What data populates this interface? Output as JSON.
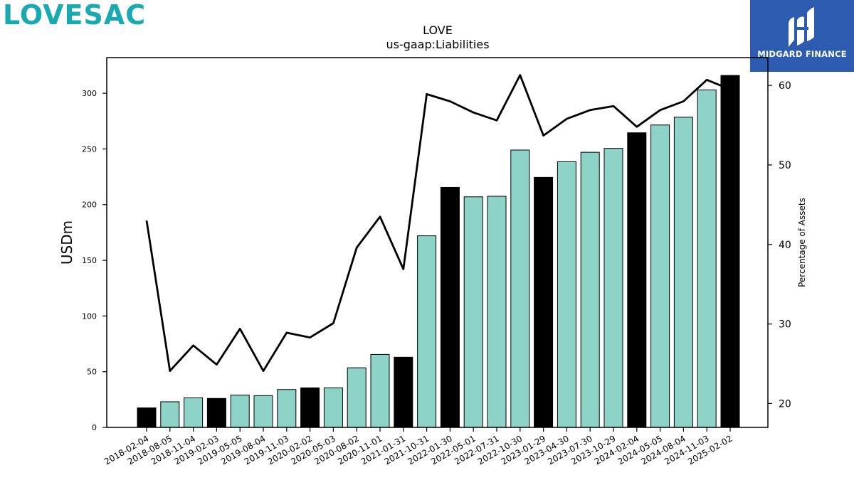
{
  "brand": {
    "logo_text": "LOVESAC",
    "logo_color": "#18aab0",
    "badge_text": "MIDGARD FINANCE",
    "badge_color": "#2c5bb0",
    "badge_icon": "midgard-logo-icon"
  },
  "chart_data": {
    "type": "bar",
    "title": "LOVE",
    "subtitle": "us-gaap:Liabilities",
    "ylabel": "USDm",
    "y2label": "Percentage of Assets",
    "ylim": [
      0,
      332
    ],
    "y2lim": [
      17,
      63.5
    ],
    "yticks": [
      0,
      50,
      100,
      150,
      200,
      250,
      300
    ],
    "y2ticks": [
      20,
      30,
      40,
      50,
      60
    ],
    "grid": false,
    "categories": [
      "2018-02-04",
      "2018-08-05",
      "2018-11-04",
      "2019-02-03",
      "2019-05-05",
      "2019-08-04",
      "2019-11-03",
      "2020-02-02",
      "2020-05-03",
      "2020-08-02",
      "2020-11-01",
      "2021-01-31",
      "2021-10-31",
      "2022-01-30",
      "2022-05-01",
      "2022-07-31",
      "2022-10-30",
      "2023-01-29",
      "2023-04-30",
      "2023-07-30",
      "2023-10-29",
      "2024-02-04",
      "2024-05-05",
      "2024-08-04",
      "2024-11-03",
      "2025-02-02"
    ],
    "series": [
      {
        "kind": "bar",
        "values": [
          17.5,
          23,
          26.5,
          26,
          29,
          28.5,
          34,
          35.5,
          35.5,
          53.5,
          65.5,
          63,
          172,
          215.5,
          207,
          207.5,
          249,
          224.5,
          238.5,
          247,
          250.5,
          264.5,
          271.5,
          278.5,
          303,
          316
        ],
        "fiscal_year_end": [
          true,
          false,
          false,
          true,
          false,
          false,
          false,
          true,
          false,
          false,
          false,
          true,
          false,
          true,
          false,
          false,
          false,
          true,
          false,
          false,
          false,
          true,
          false,
          false,
          false,
          true
        ],
        "colors": {
          "fiscal_year_end": "#000000",
          "quarter": "#8dd3c7"
        }
      },
      {
        "kind": "line",
        "axis": "right",
        "color": "#000000",
        "values": [
          43,
          24.1,
          27.3,
          24.9,
          29.4,
          24.1,
          28.9,
          28.3,
          30.1,
          39.6,
          43.5,
          36.9,
          58.9,
          58,
          56.6,
          55.6,
          61.3,
          53.7,
          55.8,
          56.9,
          57.4,
          54.8,
          56.9,
          58,
          60.7,
          59.5
        ]
      }
    ]
  }
}
